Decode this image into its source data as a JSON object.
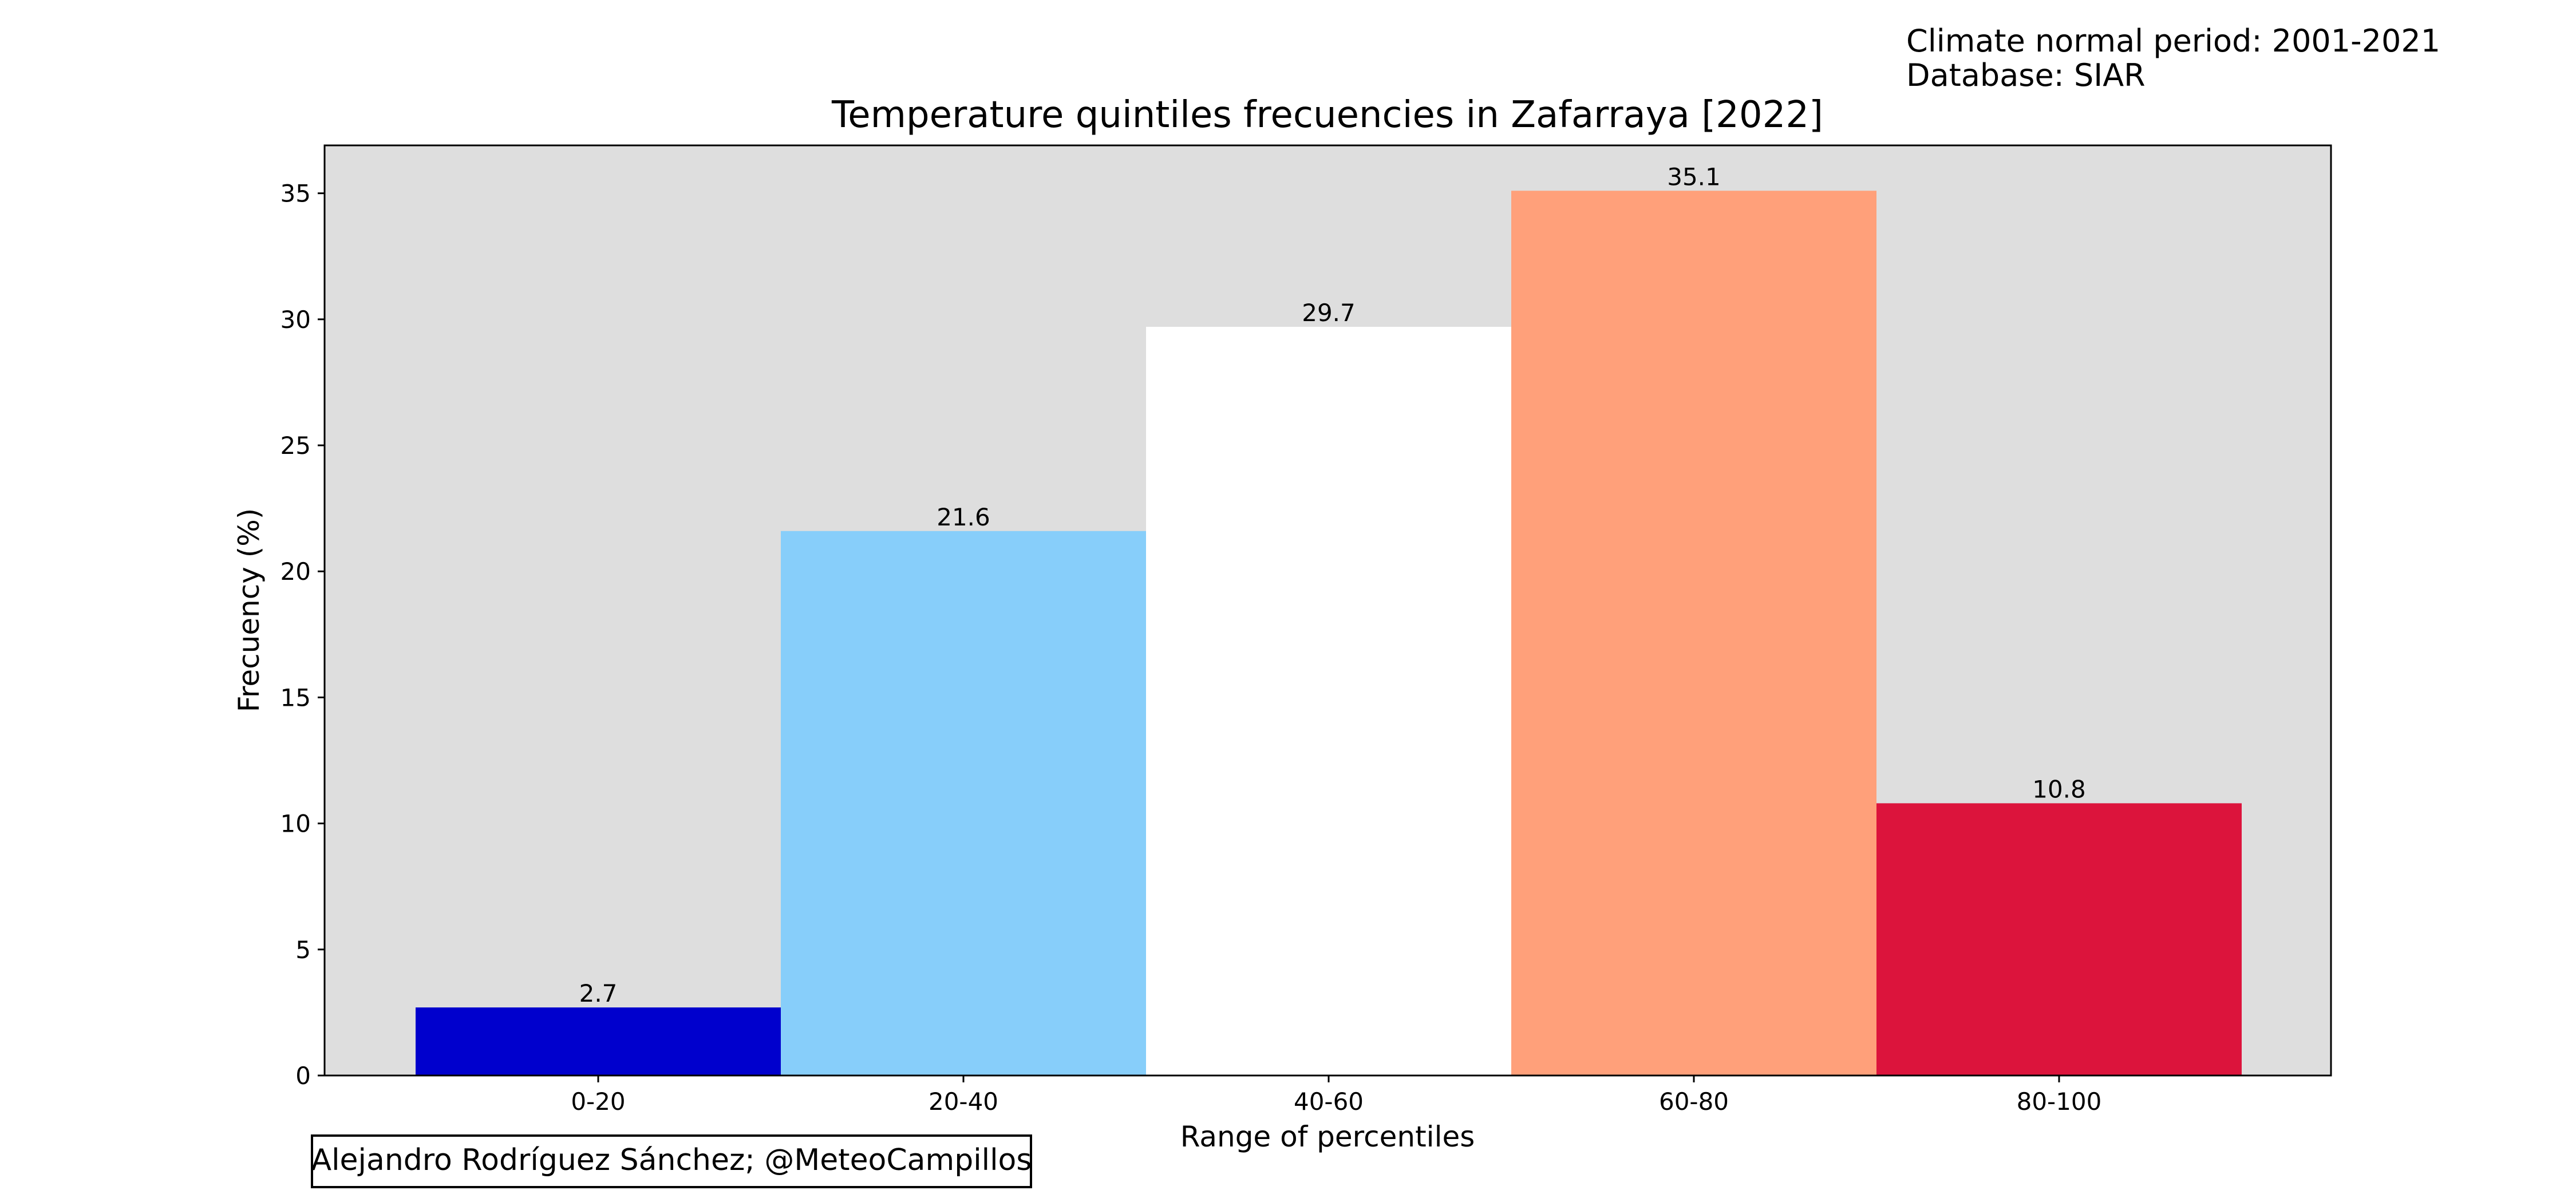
{
  "header_note": {
    "line1": "Climate normal period: 2001-2021",
    "line2": "Database: SIAR"
  },
  "credit": "Alejandro Rodríguez Sánchez; @MeteoCampillos",
  "chart_data": {
    "type": "bar",
    "title": "Temperature quintiles frecuencies in Zafarraya [2022]",
    "xlabel": "Range of percentiles",
    "ylabel": "Frecuency (%)",
    "categories": [
      "0-20",
      "20-40",
      "40-60",
      "60-80",
      "80-100"
    ],
    "values": [
      2.7,
      21.6,
      29.7,
      35.1,
      10.8
    ],
    "value_labels": [
      "2.7",
      "21.6",
      "29.7",
      "35.1",
      "10.8"
    ],
    "bar_colors": [
      "#0000cd",
      "#87cefa",
      "#ffffff",
      "#ffa07a",
      "#dc143c"
    ],
    "ylim": [
      0,
      36.9
    ],
    "yticks": [
      0,
      5,
      10,
      15,
      20,
      25,
      30,
      35
    ],
    "plot_background": "#dedede",
    "grid": false,
    "legend": false
  }
}
